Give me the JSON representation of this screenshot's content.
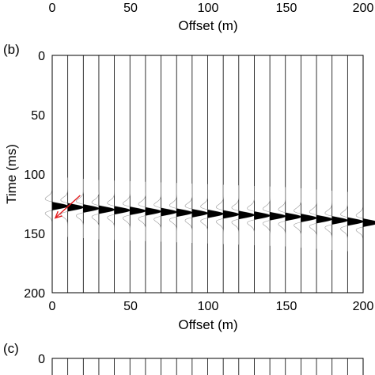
{
  "top_panel": {
    "xticks": [
      "0",
      "50",
      "100",
      "150",
      "200"
    ],
    "xlabel": "Offset (m)"
  },
  "panel_b": {
    "label": "(b)",
    "chart_data": {
      "type": "wiggle-trace",
      "xlabel": "Offset (m)",
      "ylabel": "Time (ms)",
      "xlim": [
        0,
        200
      ],
      "ylim": [
        0,
        200
      ],
      "y_reversed": true,
      "xticks": [
        "0",
        "50",
        "100",
        "150",
        "200"
      ],
      "yticks": [
        "0",
        "50",
        "100",
        "150",
        "200"
      ],
      "trace_offsets": [
        0,
        10,
        20,
        30,
        40,
        50,
        60,
        70,
        80,
        90,
        100,
        110,
        120,
        130,
        140,
        150,
        160,
        170,
        180,
        190,
        200
      ],
      "event_times": [
        127,
        128,
        129,
        130,
        130.5,
        131,
        131.5,
        132,
        132.5,
        133,
        133.5,
        134,
        134.5,
        135,
        135.5,
        136,
        137,
        138,
        139,
        140,
        141
      ],
      "arrow": {
        "color": "#e41a1c",
        "from": [
          18,
          118
        ],
        "to": [
          2,
          137
        ]
      },
      "trace_color": "#000000",
      "guide_color": "#9a9a9a"
    }
  },
  "panel_c": {
    "label": "(c)",
    "yticks": [
      "0"
    ]
  }
}
